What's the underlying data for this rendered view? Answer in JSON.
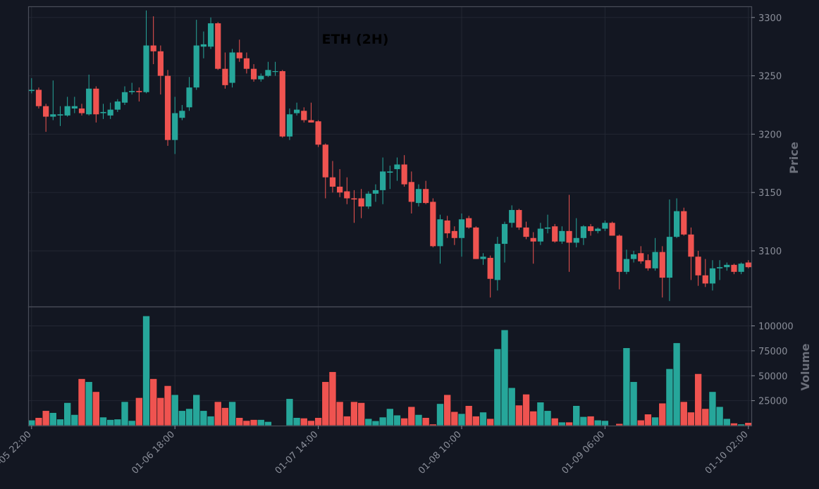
{
  "chart_data": {
    "type": "candlestick",
    "title": "ETH (2H)",
    "price_label": "Price",
    "volume_label": "Volume",
    "colors": {
      "background": "#131722",
      "up": "#26a69a",
      "down": "#ef5350",
      "grid": "#232733",
      "frame": "#4a4e59",
      "text": "#8a8e99"
    },
    "price_ticks": [
      3100,
      3150,
      3200,
      3250,
      3300
    ],
    "volume_ticks": [
      {
        "value": 25000,
        "label": "25000"
      },
      {
        "value": 50000,
        "label": "50000"
      },
      {
        "value": 75000,
        "label": "75000"
      },
      {
        "value": 100000,
        "label": "100000"
      }
    ],
    "x_ticks": [
      {
        "index": 0,
        "label": "01-05 22:00"
      },
      {
        "index": 20,
        "label": "01-06 18:00"
      },
      {
        "index": 40,
        "label": "01-07 14:00"
      },
      {
        "index": 60,
        "label": "01-08 10:00"
      },
      {
        "index": 80,
        "label": "01-09 06:00"
      },
      {
        "index": 100,
        "label": "01-10 02:00"
      }
    ],
    "ohlc": [
      [
        3237,
        3248,
        3235,
        3238
      ],
      [
        3238,
        3240,
        3222,
        3224
      ],
      [
        3224,
        3226,
        3202,
        3215
      ],
      [
        3215,
        3246,
        3212,
        3217
      ],
      [
        3216,
        3224,
        3207,
        3217
      ],
      [
        3216,
        3232,
        3215,
        3224
      ],
      [
        3222,
        3232,
        3218,
        3224
      ],
      [
        3222,
        3226,
        3216,
        3218
      ],
      [
        3217,
        3251,
        3216,
        3239
      ],
      [
        3239,
        3241,
        3210,
        3217
      ],
      [
        3218,
        3226,
        3213,
        3219
      ],
      [
        3216,
        3227,
        3213,
        3221
      ],
      [
        3221,
        3230,
        3219,
        3228
      ],
      [
        3227,
        3241,
        3225,
        3236
      ],
      [
        3236,
        3244,
        3234,
        3237
      ],
      [
        3237,
        3240,
        3228,
        3236
      ],
      [
        3236,
        3306,
        3235,
        3276
      ],
      [
        3276,
        3301,
        3260,
        3271
      ],
      [
        3271,
        3276,
        3234,
        3250
      ],
      [
        3250,
        3255,
        3190,
        3195
      ],
      [
        3195,
        3232,
        3183,
        3218
      ],
      [
        3214,
        3225,
        3212,
        3220
      ],
      [
        3223,
        3249,
        3220,
        3240
      ],
      [
        3240,
        3298,
        3238,
        3276
      ],
      [
        3275,
        3288,
        3265,
        3277
      ],
      [
        3275,
        3300,
        3273,
        3295
      ],
      [
        3295,
        3296,
        3255,
        3256
      ],
      [
        3256,
        3270,
        3239,
        3242
      ],
      [
        3244,
        3273,
        3240,
        3270
      ],
      [
        3270,
        3281,
        3262,
        3265
      ],
      [
        3265,
        3270,
        3252,
        3256
      ],
      [
        3256,
        3260,
        3245,
        3247
      ],
      [
        3247,
        3252,
        3245,
        3250
      ],
      [
        3250,
        3262,
        3249,
        3255
      ],
      [
        3254,
        3262,
        3250,
        3254
      ],
      [
        3254,
        3255,
        3197,
        3198
      ],
      [
        3198,
        3222,
        3195,
        3217
      ],
      [
        3218,
        3227,
        3216,
        3221
      ],
      [
        3220,
        3223,
        3210,
        3212
      ],
      [
        3212,
        3227,
        3210,
        3210
      ],
      [
        3211,
        3212,
        3189,
        3191
      ],
      [
        3191,
        3192,
        3145,
        3163
      ],
      [
        3163,
        3177,
        3150,
        3155
      ],
      [
        3155,
        3170,
        3146,
        3150
      ],
      [
        3151,
        3163,
        3140,
        3145
      ],
      [
        3145,
        3152,
        3124,
        3144
      ],
      [
        3145,
        3153,
        3128,
        3138
      ],
      [
        3138,
        3151,
        3136,
        3149
      ],
      [
        3149,
        3157,
        3142,
        3152
      ],
      [
        3152,
        3180,
        3140,
        3168
      ],
      [
        3167,
        3173,
        3153,
        3168
      ],
      [
        3170,
        3180,
        3160,
        3174
      ],
      [
        3174,
        3182,
        3155,
        3157
      ],
      [
        3159,
        3168,
        3132,
        3142
      ],
      [
        3141,
        3157,
        3138,
        3153
      ],
      [
        3153,
        3160,
        3140,
        3141
      ],
      [
        3142,
        3145,
        3103,
        3104
      ],
      [
        3104,
        3131,
        3089,
        3127
      ],
      [
        3126,
        3130,
        3111,
        3115
      ],
      [
        3117,
        3121,
        3105,
        3111
      ],
      [
        3111,
        3132,
        3095,
        3127
      ],
      [
        3128,
        3130,
        3119,
        3120
      ],
      [
        3120,
        3121,
        3093,
        3093
      ],
      [
        3093,
        3098,
        3088,
        3095
      ],
      [
        3094,
        3096,
        3060,
        3076
      ],
      [
        3075,
        3112,
        3066,
        3106
      ],
      [
        3106,
        3125,
        3090,
        3123
      ],
      [
        3124,
        3139,
        3120,
        3135
      ],
      [
        3135,
        3136,
        3118,
        3120
      ],
      [
        3120,
        3125,
        3110,
        3112
      ],
      [
        3111,
        3116,
        3089,
        3108
      ],
      [
        3108,
        3124,
        3105,
        3119
      ],
      [
        3119,
        3131,
        3115,
        3120
      ],
      [
        3121,
        3123,
        3107,
        3108
      ],
      [
        3108,
        3121,
        3106,
        3117
      ],
      [
        3117,
        3148,
        3082,
        3107
      ],
      [
        3107,
        3128,
        3103,
        3111
      ],
      [
        3111,
        3122,
        3105,
        3121
      ],
      [
        3121,
        3123,
        3113,
        3117
      ],
      [
        3117,
        3120,
        3115,
        3119
      ],
      [
        3119,
        3126,
        3117,
        3124
      ],
      [
        3124,
        3125,
        3113,
        3113
      ],
      [
        3113,
        3114,
        3067,
        3082
      ],
      [
        3082,
        3101,
        3080,
        3093
      ],
      [
        3093,
        3100,
        3090,
        3097
      ],
      [
        3098,
        3104,
        3089,
        3091
      ],
      [
        3092,
        3097,
        3083,
        3085
      ],
      [
        3085,
        3111,
        3083,
        3099
      ],
      [
        3099,
        3104,
        3060,
        3077
      ],
      [
        3077,
        3144,
        3057,
        3112
      ],
      [
        3112,
        3145,
        3111,
        3134
      ],
      [
        3134,
        3137,
        3113,
        3114
      ],
      [
        3114,
        3120,
        3075,
        3095
      ],
      [
        3095,
        3100,
        3070,
        3079
      ],
      [
        3079,
        3093,
        3069,
        3072
      ],
      [
        3072,
        3092,
        3066,
        3085
      ],
      [
        3085,
        3092,
        3075,
        3086
      ],
      [
        3086,
        3090,
        3083,
        3088
      ],
      [
        3088,
        3089,
        3080,
        3082
      ],
      [
        3082,
        3090,
        3080,
        3089
      ],
      [
        3090,
        3092,
        3085,
        3086
      ]
    ],
    "volume": [
      5500,
      8000,
      15000,
      13000,
      6500,
      23000,
      11000,
      47000,
      44000,
      34000,
      8500,
      6000,
      6500,
      24000,
      5000,
      28000,
      110000,
      47000,
      28000,
      40000,
      31000,
      15000,
      17000,
      31000,
      15000,
      9500,
      24000,
      18000,
      24000,
      8000,
      5000,
      6000,
      6000,
      4000,
      300,
      300,
      27000,
      8000,
      7500,
      5000,
      8000,
      44000,
      54000,
      24000,
      9500,
      24000,
      23000,
      7000,
      4800,
      8500,
      17000,
      10500,
      7500,
      19000,
      11000,
      8000,
      1500,
      22000,
      31000,
      14000,
      12000,
      20000,
      9500,
      13500,
      7000,
      77000,
      96000,
      38000,
      20500,
      31500,
      14500,
      23500,
      15000,
      7500,
      3500,
      3500,
      20000,
      9000,
      9500,
      5500,
      5000,
      300,
      2000,
      78000,
      44000,
      5500,
      11500,
      8500,
      22500,
      57000,
      83000,
      24000,
      13500,
      52000,
      17000,
      34000,
      19000,
      7000,
      2500,
      1500,
      3000
    ]
  }
}
